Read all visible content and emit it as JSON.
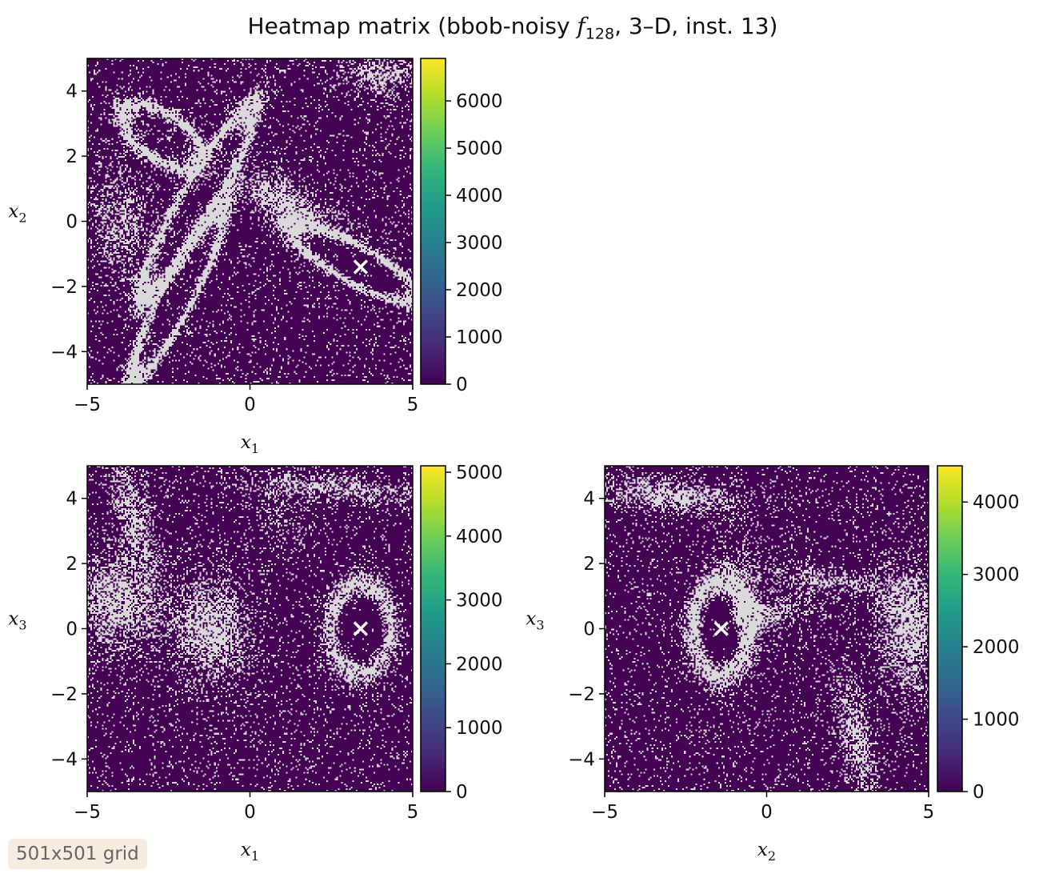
{
  "figure": {
    "title_prefix": "Heatmap matrix (bbob-noisy ",
    "title_fn": "f",
    "title_fn_sub": "128",
    "title_suffix": ", 3–D, inst. 13)",
    "badge": "501x501 grid"
  },
  "chart_data": [
    {
      "type": "heatmap",
      "xlabel": "x",
      "xlabel_sub": "1",
      "ylabel": "x",
      "ylabel_sub": "2",
      "xlim": [
        -5,
        5
      ],
      "ylim": [
        -5,
        5
      ],
      "xticks": [
        -5,
        0,
        5
      ],
      "yticks": [
        -4,
        -2,
        0,
        2,
        4
      ],
      "xtick_labels": [
        "−5",
        "0",
        "5"
      ],
      "ytick_labels": [
        "−4",
        "−2",
        "0",
        "2",
        "4"
      ],
      "colorbar": {
        "min": 0,
        "max": 6900,
        "ticks": [
          0,
          1000,
          2000,
          3000,
          4000,
          5000,
          6000
        ],
        "tick_labels": [
          "0",
          "1000",
          "2000",
          "3000",
          "4000",
          "5000",
          "6000"
        ]
      },
      "optimum": {
        "x": 3.4,
        "y": -1.4,
        "marker": "×"
      }
    },
    {
      "type": "heatmap",
      "xlabel": "x",
      "xlabel_sub": "1",
      "ylabel": "x",
      "ylabel_sub": "3",
      "xlim": [
        -5,
        5
      ],
      "ylim": [
        -5,
        5
      ],
      "xticks": [
        -5,
        0,
        5
      ],
      "yticks": [
        -4,
        -2,
        0,
        2,
        4
      ],
      "xtick_labels": [
        "−5",
        "0",
        "5"
      ],
      "ytick_labels": [
        "−4",
        "−2",
        "0",
        "2",
        "4"
      ],
      "colorbar": {
        "min": 0,
        "max": 5100,
        "ticks": [
          0,
          1000,
          2000,
          3000,
          4000,
          5000
        ],
        "tick_labels": [
          "0",
          "1000",
          "2000",
          "3000",
          "4000",
          "5000"
        ]
      },
      "optimum": {
        "x": 3.4,
        "y": 0.0,
        "marker": "×"
      }
    },
    {
      "type": "heatmap",
      "xlabel": "x",
      "xlabel_sub": "2",
      "ylabel": "x",
      "ylabel_sub": "3",
      "xlim": [
        -5,
        5
      ],
      "ylim": [
        -5,
        5
      ],
      "xticks": [
        -5,
        0,
        5
      ],
      "yticks": [
        -4,
        -2,
        0,
        2,
        4
      ],
      "xtick_labels": [
        "−5",
        "0",
        "5"
      ],
      "ytick_labels": [
        "−4",
        "−2",
        "0",
        "2",
        "4"
      ],
      "colorbar": {
        "min": 0,
        "max": 4500,
        "ticks": [
          0,
          1000,
          2000,
          3000,
          4000
        ],
        "tick_labels": [
          "0",
          "1000",
          "2000",
          "3000",
          "4000"
        ]
      },
      "optimum": {
        "x": -1.4,
        "y": 0.0,
        "marker": "×"
      }
    }
  ],
  "colors": {
    "low": "#440154",
    "masked": "#d9d9d9",
    "marker": "#ffffff",
    "viridis": [
      "#440154",
      "#482878",
      "#3e4989",
      "#31688e",
      "#26828e",
      "#1f9e89",
      "#35b779",
      "#6ece58",
      "#b5de2b",
      "#fde725"
    ]
  }
}
